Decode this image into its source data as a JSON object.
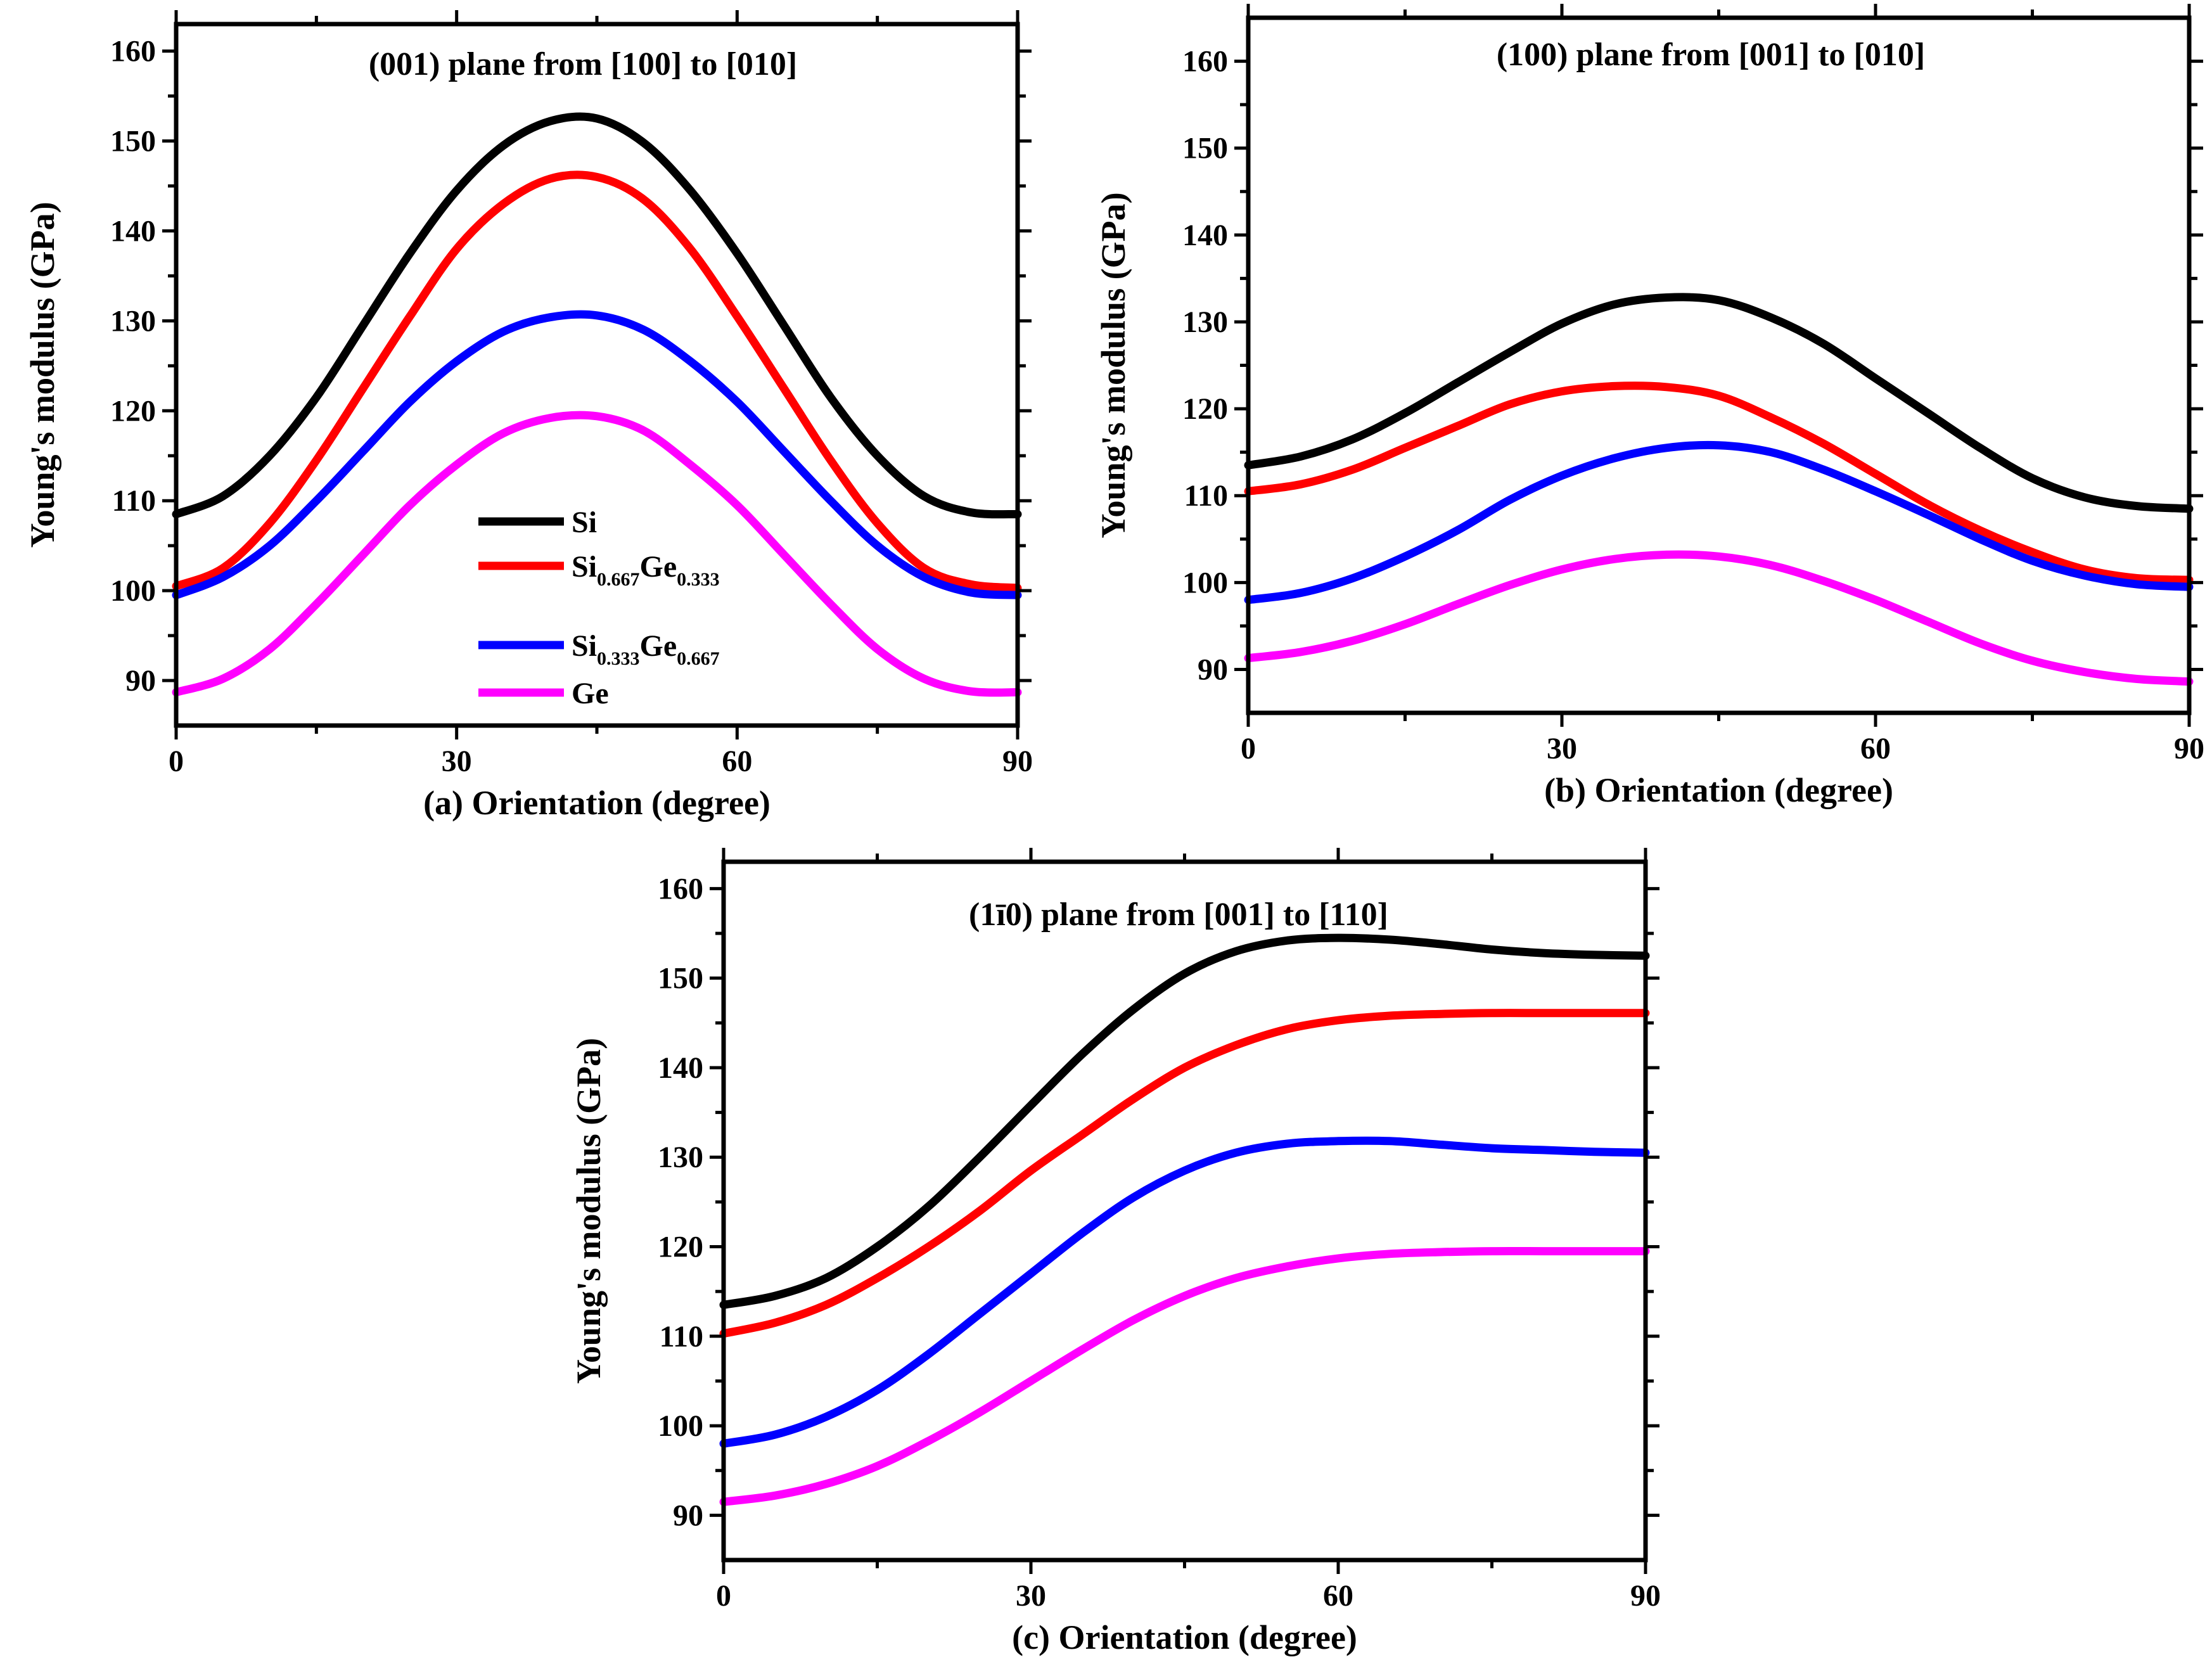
{
  "colors": {
    "Si": "#000000",
    "Si0.667Ge0.333": "#ff0000",
    "Si0.333Ge0.667": "#0000ff",
    "Ge": "#ff00ff"
  },
  "chart_data": [
    {
      "type": "line",
      "title": "(001) plane from [100] to [010]",
      "xlabel": "(a) Orientation (degree)",
      "ylabel": "Young's modulus (GPa)",
      "xlim": [
        0,
        90
      ],
      "ylim": [
        85,
        163
      ],
      "xticks": [
        0,
        30,
        60,
        90
      ],
      "yticks": [
        90,
        100,
        110,
        120,
        130,
        140,
        150,
        160
      ],
      "legend": "center-left",
      "x": [
        0,
        5,
        10,
        15,
        20,
        25,
        30,
        35,
        40,
        45,
        50,
        55,
        60,
        65,
        70,
        75,
        80,
        85,
        90
      ],
      "series": [
        {
          "name": "Si",
          "color": "#000000",
          "values": [
            108.5,
            110.5,
            115.0,
            121.5,
            129.5,
            137.5,
            144.5,
            149.5,
            152.2,
            152.5,
            149.8,
            144.5,
            137.5,
            129.5,
            121.5,
            115.0,
            110.5,
            108.7,
            108.5
          ]
        },
        {
          "name": "Si0.667Ge0.333",
          "color": "#ff0000",
          "values": [
            100.5,
            102.5,
            107.5,
            114.5,
            122.5,
            130.5,
            138.0,
            143.0,
            145.8,
            146.0,
            143.5,
            138.0,
            130.5,
            122.5,
            114.5,
            107.5,
            102.5,
            100.7,
            100.3
          ]
        },
        {
          "name": "Si0.333Ge0.667",
          "color": "#0000ff",
          "values": [
            99.5,
            101.5,
            105.0,
            110.0,
            115.5,
            121.0,
            125.5,
            128.8,
            130.4,
            130.6,
            129.0,
            125.5,
            121.0,
            115.5,
            110.0,
            105.0,
            101.5,
            99.8,
            99.5
          ]
        },
        {
          "name": "Ge",
          "color": "#ff00ff",
          "values": [
            88.7,
            90.2,
            93.5,
            98.5,
            104.0,
            109.5,
            114.0,
            117.5,
            119.2,
            119.4,
            117.8,
            114.0,
            109.5,
            104.0,
            98.5,
            93.5,
            90.2,
            88.8,
            88.7
          ]
        }
      ]
    },
    {
      "type": "line",
      "title": "(100) plane from [001] to [010]",
      "xlabel": "(b) Orientation (degree)",
      "ylabel": "Young's modulus (GPa)",
      "xlim": [
        0,
        90
      ],
      "ylim": [
        85,
        165
      ],
      "xticks": [
        0,
        30,
        60,
        90
      ],
      "yticks": [
        90,
        100,
        110,
        120,
        130,
        140,
        150,
        160
      ],
      "x": [
        0,
        5,
        10,
        15,
        20,
        25,
        30,
        35,
        40,
        45,
        50,
        55,
        60,
        65,
        70,
        75,
        80,
        85,
        90
      ],
      "series": [
        {
          "name": "Si",
          "color": "#000000",
          "values": [
            113.5,
            114.5,
            116.5,
            119.5,
            123.0,
            126.5,
            129.8,
            132.0,
            132.8,
            132.5,
            130.5,
            127.5,
            123.5,
            119.5,
            115.5,
            112.0,
            109.8,
            108.8,
            108.5
          ]
        },
        {
          "name": "Si0.667Ge0.333",
          "color": "#ff0000",
          "values": [
            110.5,
            111.3,
            113.0,
            115.5,
            118.0,
            120.5,
            122.0,
            122.6,
            122.5,
            121.5,
            119.0,
            116.0,
            112.5,
            109.0,
            106.0,
            103.5,
            101.5,
            100.5,
            100.3
          ]
        },
        {
          "name": "Si0.333Ge0.667",
          "color": "#0000ff",
          "values": [
            98.0,
            98.8,
            100.5,
            103.0,
            106.0,
            109.5,
            112.3,
            114.3,
            115.5,
            115.8,
            115.0,
            113.0,
            110.5,
            107.8,
            105.0,
            102.5,
            100.8,
            99.8,
            99.5
          ]
        },
        {
          "name": "Ge",
          "color": "#ff00ff",
          "values": [
            91.3,
            92.0,
            93.3,
            95.2,
            97.5,
            99.7,
            101.5,
            102.7,
            103.2,
            103.0,
            102.0,
            100.2,
            98.0,
            95.5,
            93.0,
            91.0,
            89.7,
            88.9,
            88.6
          ]
        }
      ]
    },
    {
      "type": "line",
      "title": "(1ī0) plane from [001] to [110]",
      "xlabel": "(c) Orientation (degree)",
      "ylabel": "Young's modulus (GPa)",
      "xlim": [
        0,
        90
      ],
      "ylim": [
        85,
        163
      ],
      "xticks": [
        0,
        30,
        60,
        90
      ],
      "yticks": [
        90,
        100,
        110,
        120,
        130,
        140,
        150,
        160
      ],
      "x": [
        0,
        5,
        10,
        15,
        20,
        25,
        30,
        35,
        40,
        45,
        50,
        55,
        60,
        65,
        70,
        75,
        80,
        85,
        90
      ],
      "series": [
        {
          "name": "Si",
          "color": "#000000",
          "values": [
            113.5,
            114.5,
            116.5,
            120.0,
            124.5,
            130.0,
            135.8,
            141.5,
            146.5,
            150.5,
            153.0,
            154.2,
            154.5,
            154.3,
            153.8,
            153.2,
            152.8,
            152.6,
            152.5
          ]
        },
        {
          "name": "Si0.667Ge0.333",
          "color": "#ff0000",
          "values": [
            110.3,
            111.5,
            113.5,
            116.5,
            120.0,
            124.0,
            128.5,
            132.5,
            136.5,
            140.0,
            142.5,
            144.3,
            145.3,
            145.8,
            146.0,
            146.1,
            146.1,
            146.1,
            146.1
          ]
        },
        {
          "name": "Si0.333Ge0.667",
          "color": "#0000ff",
          "values": [
            98.0,
            99.0,
            101.0,
            104.0,
            108.0,
            112.5,
            117.0,
            121.5,
            125.5,
            128.5,
            130.5,
            131.5,
            131.8,
            131.8,
            131.4,
            131.0,
            130.8,
            130.6,
            130.5
          ]
        },
        {
          "name": "Ge",
          "color": "#ff00ff",
          "values": [
            91.5,
            92.2,
            93.5,
            95.5,
            98.3,
            101.5,
            105.0,
            108.5,
            111.8,
            114.5,
            116.5,
            117.8,
            118.7,
            119.2,
            119.4,
            119.5,
            119.5,
            119.5,
            119.5
          ]
        }
      ]
    }
  ],
  "legend": {
    "items": [
      {
        "key": "Si",
        "label": "Si",
        "color": "#000000"
      },
      {
        "key": "SiGe1",
        "label_main1": "Si",
        "label_sub1": "0.667",
        "label_main2": "Ge",
        "label_sub2": "0.333",
        "color": "#ff0000"
      },
      {
        "key": "SiGe2",
        "label_main1": "Si",
        "label_sub1": "0.333",
        "label_main2": "Ge",
        "label_sub2": "0.667",
        "color": "#0000ff"
      },
      {
        "key": "Ge",
        "label": "Ge",
        "color": "#ff00ff"
      }
    ]
  }
}
